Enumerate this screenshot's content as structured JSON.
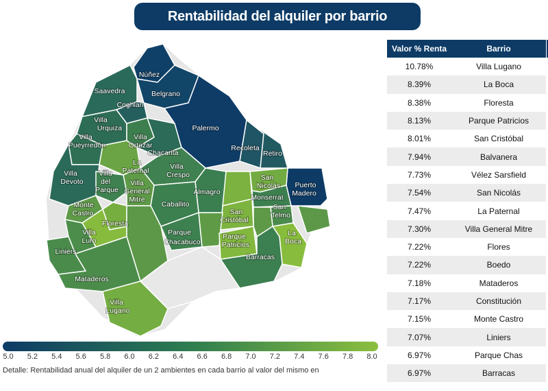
{
  "header": {
    "title": "Rentabilidad del alquiler por barrio"
  },
  "colors": {
    "navy": "#0d3b66",
    "scale_low": "#0d3b66",
    "scale_mid": "#2e7d4f",
    "scale_high": "#8cbf3f"
  },
  "legend": {
    "ticks": [
      "5.0",
      "5.2",
      "5.4",
      "5.6",
      "5.8",
      "6.0",
      "6.2",
      "6.4",
      "6.6",
      "6.8",
      "7.0",
      "7.2",
      "7.4",
      "7.6",
      "7.8",
      "8.0"
    ],
    "note": "Detalle: Rentabilidad anual del alquiler de un 2 ambientes en cada barrio al valor del mismo en"
  },
  "table": {
    "headers": {
      "value": "Valor % Renta",
      "barrio": "Barrio"
    },
    "rows": [
      {
        "value": "10.78%",
        "barrio": "Villa Lugano"
      },
      {
        "value": "8.39%",
        "barrio": "La Boca"
      },
      {
        "value": "8.38%",
        "barrio": "Floresta"
      },
      {
        "value": "8.13%",
        "barrio": "Parque Patricios"
      },
      {
        "value": "8.01%",
        "barrio": "San Cristóbal"
      },
      {
        "value": "7.94%",
        "barrio": "Balvanera"
      },
      {
        "value": "7.73%",
        "barrio": "Vélez Sarsfield"
      },
      {
        "value": "7.54%",
        "barrio": "San Nicolás"
      },
      {
        "value": "7.47%",
        "barrio": "La Paternal"
      },
      {
        "value": "7.30%",
        "barrio": "Villa General Mitre"
      },
      {
        "value": "7.22%",
        "barrio": "Flores"
      },
      {
        "value": "7.22%",
        "barrio": "Boedo"
      },
      {
        "value": "7.18%",
        "barrio": "Mataderos"
      },
      {
        "value": "7.17%",
        "barrio": "Constitución"
      },
      {
        "value": "7.15%",
        "barrio": "Monte Castro"
      },
      {
        "value": "7.07%",
        "barrio": "Liniers"
      },
      {
        "value": "6.97%",
        "barrio": "Parque Chas"
      },
      {
        "value": "6.97%",
        "barrio": "Barracas"
      }
    ]
  },
  "map": {
    "labels": {
      "nunez": "Núñez",
      "saavedra": "Saavedra",
      "belgrano": "Belgrano",
      "coghlan": "Coghlan",
      "villa_urquiza_1": "Villa",
      "villa_urquiza_2": "Urquiza",
      "villa_pueyrredon_1": "Villa",
      "villa_pueyrredon_2": "Pueyrredón",
      "villa_ortuzar_1": "Villa",
      "villa_ortuzar_2": "Ortúzar",
      "chacarita": "Chacarita",
      "palermo": "Palermo",
      "recoleta": "Recoleta",
      "retiro": "Retiro",
      "la_paternal_1": "La",
      "la_paternal_2": "Paternal",
      "villa_crespo_1": "Villa",
      "villa_crespo_2": "Crespo",
      "villa_devoto_1": "Villa",
      "villa_devoto_2": "Devoto",
      "villa_del_parque_1": "Villa",
      "villa_del_parque_2": "del",
      "villa_del_parque_3": "Parque",
      "villa_general_mitre_1": "Villa",
      "villa_general_mitre_2": "General",
      "villa_general_mitre_3": "Mitre",
      "almagro": "Almagro",
      "san_nicolas_1": "San",
      "san_nicolas_2": "Nicolás",
      "puerto_madero_1": "Puerto",
      "puerto_madero_2": "Madero",
      "monserrat": "Monserrat",
      "san_telmo_1": "San",
      "san_telmo_2": "Telmo",
      "monte_castro_1": "Monte",
      "monte_castro_2": "Castro",
      "caballito": "Caballito",
      "floresta": "Floresta",
      "san_cristobal_1": "San",
      "san_cristobal_2": "Cristóbal",
      "villa_luro_1": "Villa",
      "villa_luro_2": "Luro",
      "parque_chacabuco_1": "Parque",
      "parque_chacabuco_2": "Chacabuco",
      "parque_patricios_1": "Parque",
      "parque_patricios_2": "Patricios",
      "la_boca_1": "La",
      "la_boca_2": "Boca",
      "liniers": "Liniers",
      "barracas": "Barracas",
      "mataderos": "Mataderos",
      "villa_lugano_1": "Villa",
      "villa_lugano_2": "Lugano"
    }
  }
}
